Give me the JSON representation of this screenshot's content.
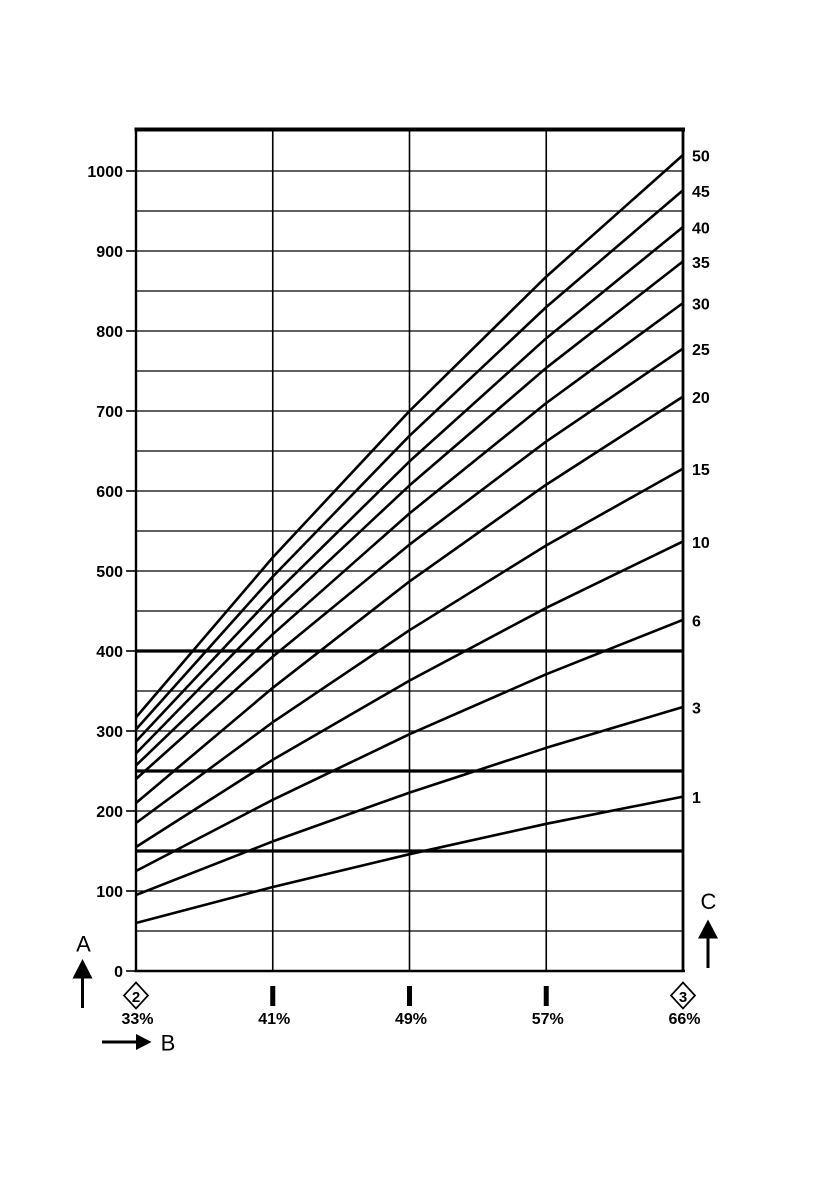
{
  "colors": {
    "ink": "#000000",
    "paper": "#ffffff"
  },
  "chart_data": {
    "type": "line",
    "title": "",
    "grid": "on",
    "x_axis": {
      "label": "B",
      "tick_labels": [
        "33%",
        "41%",
        "49%",
        "57%",
        "66%"
      ],
      "values": [
        33,
        41,
        49,
        57,
        66
      ],
      "unit": "%",
      "arrow_direction": "right"
    },
    "y_axis": {
      "label": "A",
      "tick_labels": [
        "0",
        "100",
        "200",
        "300",
        "400",
        "500",
        "600",
        "700",
        "800",
        "900",
        "1000"
      ],
      "tick_values": [
        0,
        100,
        200,
        300,
        400,
        500,
        600,
        700,
        800,
        900,
        1000
      ],
      "ylim": [
        0,
        1055
      ],
      "minor_grid_step": 50,
      "bold_gridlines_at": [
        150,
        250,
        400
      ],
      "arrow_direction": "up"
    },
    "line_family_axis": {
      "label": "C",
      "position": "right",
      "arrow_direction": "up"
    },
    "origin_label": "0",
    "series": [
      {
        "name": "1",
        "values": [
          60,
          105,
          146,
          184,
          218
        ]
      },
      {
        "name": "3",
        "values": [
          95,
          162,
          223,
          279,
          330
        ]
      },
      {
        "name": "6",
        "values": [
          125,
          214,
          296,
          371,
          439
        ]
      },
      {
        "name": "10",
        "values": [
          155,
          264,
          363,
          454,
          537
        ]
      },
      {
        "name": "15",
        "values": [
          185,
          311,
          426,
          532,
          628
        ]
      },
      {
        "name": "20",
        "values": [
          210,
          354,
          487,
          608,
          718
        ]
      },
      {
        "name": "25",
        "values": [
          240,
          393,
          533,
          662,
          778
        ]
      },
      {
        "name": "30",
        "values": [
          257,
          421,
          572,
          710,
          835
        ]
      },
      {
        "name": "35",
        "values": [
          272,
          447,
          607,
          754,
          887
        ]
      },
      {
        "name": "40",
        "values": [
          287,
          469,
          637,
          791,
          930
        ]
      },
      {
        "name": "45",
        "values": [
          302,
          493,
          669,
          830,
          976
        ]
      },
      {
        "name": "50",
        "values": [
          317,
          517,
          700,
          868,
          1020
        ]
      }
    ],
    "markers": [
      {
        "label": "2",
        "shape": "diamond",
        "x_tick_index": 0
      },
      {
        "label": "3",
        "shape": "diamond",
        "x_tick_index": 4
      }
    ]
  }
}
